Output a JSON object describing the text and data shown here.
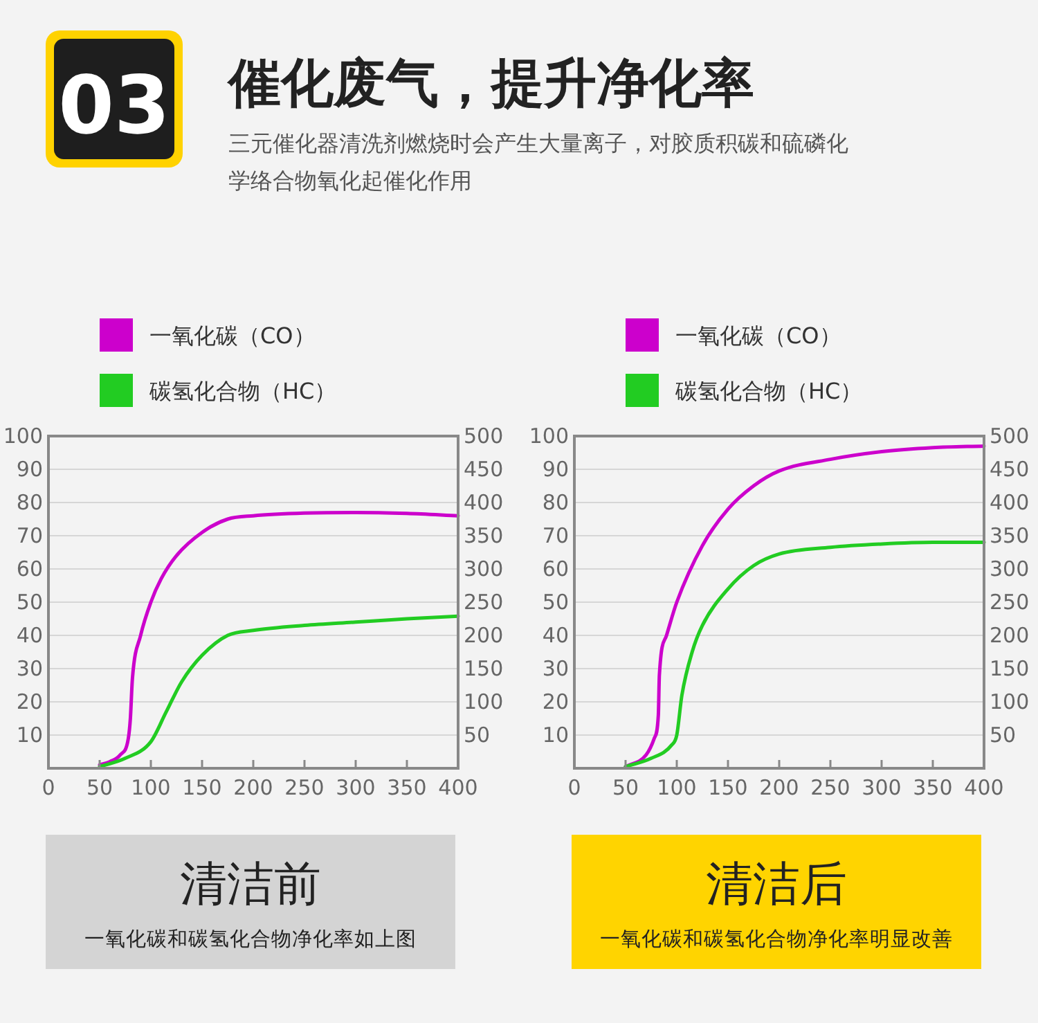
{
  "chart_data": [
    {
      "type": "line",
      "title": "催化废气，提升净化率",
      "subtitle": "三元催化器清洗剂燃烧时会产生大量离子，对胶质积碳和硫磷化学络合物氧化起催化作用",
      "annotations": [
        "03",
        "清洁前",
        "一氧化碳和碳氢化合物净化率如上图"
      ],
      "xlim": [
        0,
        400
      ],
      "xticks": [
        0,
        50,
        100,
        150,
        200,
        250,
        300,
        350,
        400
      ],
      "ylim": [
        0,
        100
      ],
      "yticks": [
        10,
        20,
        30,
        40,
        50,
        60,
        70,
        80,
        90,
        100
      ],
      "y2lim": [
        0,
        500
      ],
      "y2ticks": [
        50,
        100,
        150,
        200,
        250,
        300,
        350,
        400,
        450,
        500
      ],
      "grid": "y",
      "legend": "top left",
      "line_style": "solid",
      "marker": "none",
      "series": [
        {
          "name": "一氧化碳（CO）",
          "color": "#cc00cc",
          "x": [
            50,
            60,
            70,
            78,
            80,
            82,
            90,
            100,
            110,
            125,
            150,
            175,
            200,
            250,
            300,
            350,
            400
          ],
          "values": [
            1,
            2,
            4,
            9,
            15,
            27,
            40,
            50,
            57,
            64,
            71,
            75,
            76,
            76.8,
            77,
            76.7,
            76
          ]
        },
        {
          "name": "碳氢化合物（HC）",
          "color": "#22cc22",
          "x": [
            50,
            75,
            100,
            115,
            130,
            150,
            175,
            200,
            250,
            300,
            350,
            400
          ],
          "values": [
            0.5,
            3,
            8,
            17,
            26,
            34,
            40,
            41.5,
            43,
            44,
            45,
            45.8
          ]
        }
      ]
    },
    {
      "type": "line",
      "annotations": [
        "清洁后",
        "一氧化碳和碳氢化合物净化率明显改善"
      ],
      "xlim": [
        0,
        400
      ],
      "xticks": [
        0,
        50,
        100,
        150,
        200,
        250,
        300,
        350,
        400
      ],
      "ylim": [
        0,
        100
      ],
      "yticks": [
        10,
        20,
        30,
        40,
        50,
        60,
        70,
        80,
        90,
        100
      ],
      "y2lim": [
        0,
        500
      ],
      "y2ticks": [
        50,
        100,
        150,
        200,
        250,
        300,
        350,
        400,
        450,
        500
      ],
      "grid": "y",
      "legend": "top left",
      "line_style": "solid",
      "marker": "none",
      "series": [
        {
          "name": "一氧化碳（CO）",
          "color": "#cc00cc",
          "x": [
            50,
            70,
            78,
            82,
            83,
            90,
            100,
            125,
            150,
            175,
            200,
            250,
            300,
            350,
            400
          ],
          "values": [
            0.5,
            4,
            9,
            16,
            28,
            40,
            50,
            67,
            78,
            85,
            89.5,
            93,
            95.3,
            96.5,
            97
          ]
        },
        {
          "name": "碳氢化合物（HC）",
          "color": "#22cc22",
          "x": [
            50,
            75,
            95,
            100,
            105,
            115,
            125,
            150,
            175,
            200,
            250,
            300,
            350,
            400
          ],
          "values": [
            0.5,
            3,
            7,
            10,
            22,
            35,
            43,
            54,
            61,
            64.5,
            66.5,
            67.5,
            68,
            68
          ]
        }
      ]
    }
  ]
}
